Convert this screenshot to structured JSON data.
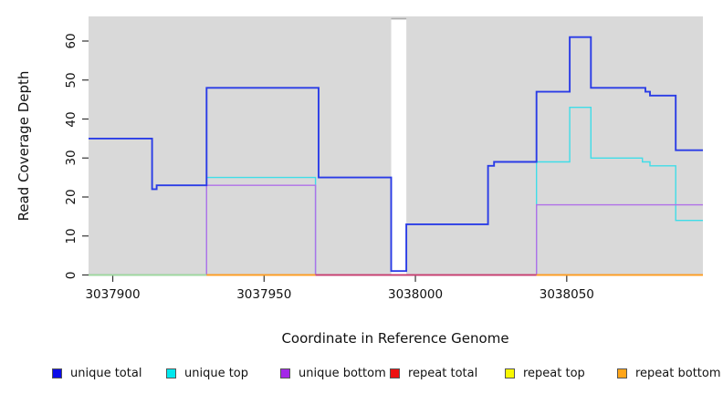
{
  "figure": {
    "background": "#ffffff",
    "plot_background": "#d9d9d9"
  },
  "chart_data": {
    "type": "line",
    "subtype": "step-coverage",
    "title": "",
    "xlabel": "Coordinate in Reference Genome",
    "ylabel": "Read Coverage Depth",
    "xlim": [
      3037892,
      3038095
    ],
    "ylim": [
      0,
      66
    ],
    "grid": false,
    "legend_position": "bottom",
    "x_ticks": [
      "3037900",
      "3037950",
      "3038000",
      "3038050"
    ],
    "x_tick_values": [
      3037900,
      3037950,
      3038000,
      3038050
    ],
    "y_ticks": [
      "0",
      "10",
      "20",
      "30",
      "40",
      "50",
      "60"
    ],
    "y_tick_values": [
      0,
      10,
      20,
      30,
      40,
      50,
      60
    ],
    "gap_region": {
      "x_start": 3037992,
      "x_end": 3037997,
      "color": "#ffffff",
      "note": "white vertical band with no gray background; unique total drops to ~1 across it"
    },
    "series": [
      {
        "name": "unique total",
        "line_color": "#2a3ce6",
        "steps": [
          [
            3037892,
            35
          ],
          [
            3037913,
            35
          ],
          [
            3037913,
            22
          ],
          [
            3037914.5,
            22
          ],
          [
            3037914.5,
            23
          ],
          [
            3037931,
            23
          ],
          [
            3037931,
            48
          ],
          [
            3037968,
            48
          ],
          [
            3037968,
            25
          ],
          [
            3037992,
            25
          ],
          [
            3037992,
            1
          ],
          [
            3037997,
            1
          ],
          [
            3037997,
            13
          ],
          [
            3038024,
            13
          ],
          [
            3038024,
            28
          ],
          [
            3038026,
            28
          ],
          [
            3038026,
            29
          ],
          [
            3038040,
            29
          ],
          [
            3038040,
            47
          ],
          [
            3038051,
            47
          ],
          [
            3038051,
            61
          ],
          [
            3038058,
            61
          ],
          [
            3038058,
            48
          ],
          [
            3038076,
            48
          ],
          [
            3038076,
            47
          ],
          [
            3038077.5,
            47
          ],
          [
            3038077.5,
            46
          ],
          [
            3038086,
            46
          ],
          [
            3038086,
            32
          ],
          [
            3038095,
            32
          ]
        ]
      },
      {
        "name": "unique top",
        "line_color": "#3fdde8",
        "steps": [
          [
            3037892,
            0
          ],
          [
            3037931,
            0
          ],
          [
            3037931,
            25
          ],
          [
            3037967,
            25
          ],
          [
            3037967,
            0
          ],
          [
            3038040,
            0
          ],
          [
            3038040,
            29
          ],
          [
            3038051,
            29
          ],
          [
            3038051,
            43
          ],
          [
            3038058,
            43
          ],
          [
            3038058,
            30
          ],
          [
            3038075,
            30
          ],
          [
            3038075,
            29
          ],
          [
            3038077.5,
            29
          ],
          [
            3038077.5,
            28
          ],
          [
            3038086,
            28
          ],
          [
            3038086,
            14
          ],
          [
            3038095,
            14
          ]
        ]
      },
      {
        "name": "unique bottom",
        "line_color": "#b070e8",
        "steps": [
          [
            3037892,
            0
          ],
          [
            3037931,
            0
          ],
          [
            3037931,
            23
          ],
          [
            3037967,
            23
          ],
          [
            3037967,
            0
          ],
          [
            3038040,
            0
          ],
          [
            3038040,
            18
          ],
          [
            3038095,
            18
          ]
        ]
      },
      {
        "name": "repeat total",
        "line_color": "#cc3a6a",
        "steps": [
          [
            3037892,
            0
          ],
          [
            3038095,
            0
          ]
        ]
      },
      {
        "name": "repeat top",
        "line_color": "#f0f000",
        "steps": [
          [
            3037892,
            0
          ],
          [
            3038095,
            0
          ]
        ]
      },
      {
        "name": "repeat bottom",
        "line_color": "#ff9d1e",
        "steps": [
          [
            3037892,
            0
          ],
          [
            3038095,
            0
          ]
        ]
      }
    ],
    "baseline_segments": [
      {
        "x_start": 3037892,
        "x_end": 3037931,
        "color": "#9edc9a",
        "note": "pale green blend of overlapping zero lines"
      },
      {
        "x_start": 3037931,
        "x_end": 3037967,
        "color": "#ff9d1e"
      },
      {
        "x_start": 3037967,
        "x_end": 3038040,
        "color": "#cc3a6a"
      },
      {
        "x_start": 3038040,
        "x_end": 3038095,
        "color": "#ff9d1e"
      }
    ]
  },
  "legend": {
    "items": [
      {
        "label": "unique total",
        "swatch_color": "#0b0be8"
      },
      {
        "label": "unique top",
        "swatch_color": "#00e8ee"
      },
      {
        "label": "unique bottom",
        "swatch_color": "#a428e8"
      },
      {
        "label": "repeat total",
        "swatch_color": "#ee1111"
      },
      {
        "label": "repeat top",
        "swatch_color": "#f8f800"
      },
      {
        "label": "repeat bottom",
        "swatch_color": "#ffa519"
      }
    ]
  }
}
